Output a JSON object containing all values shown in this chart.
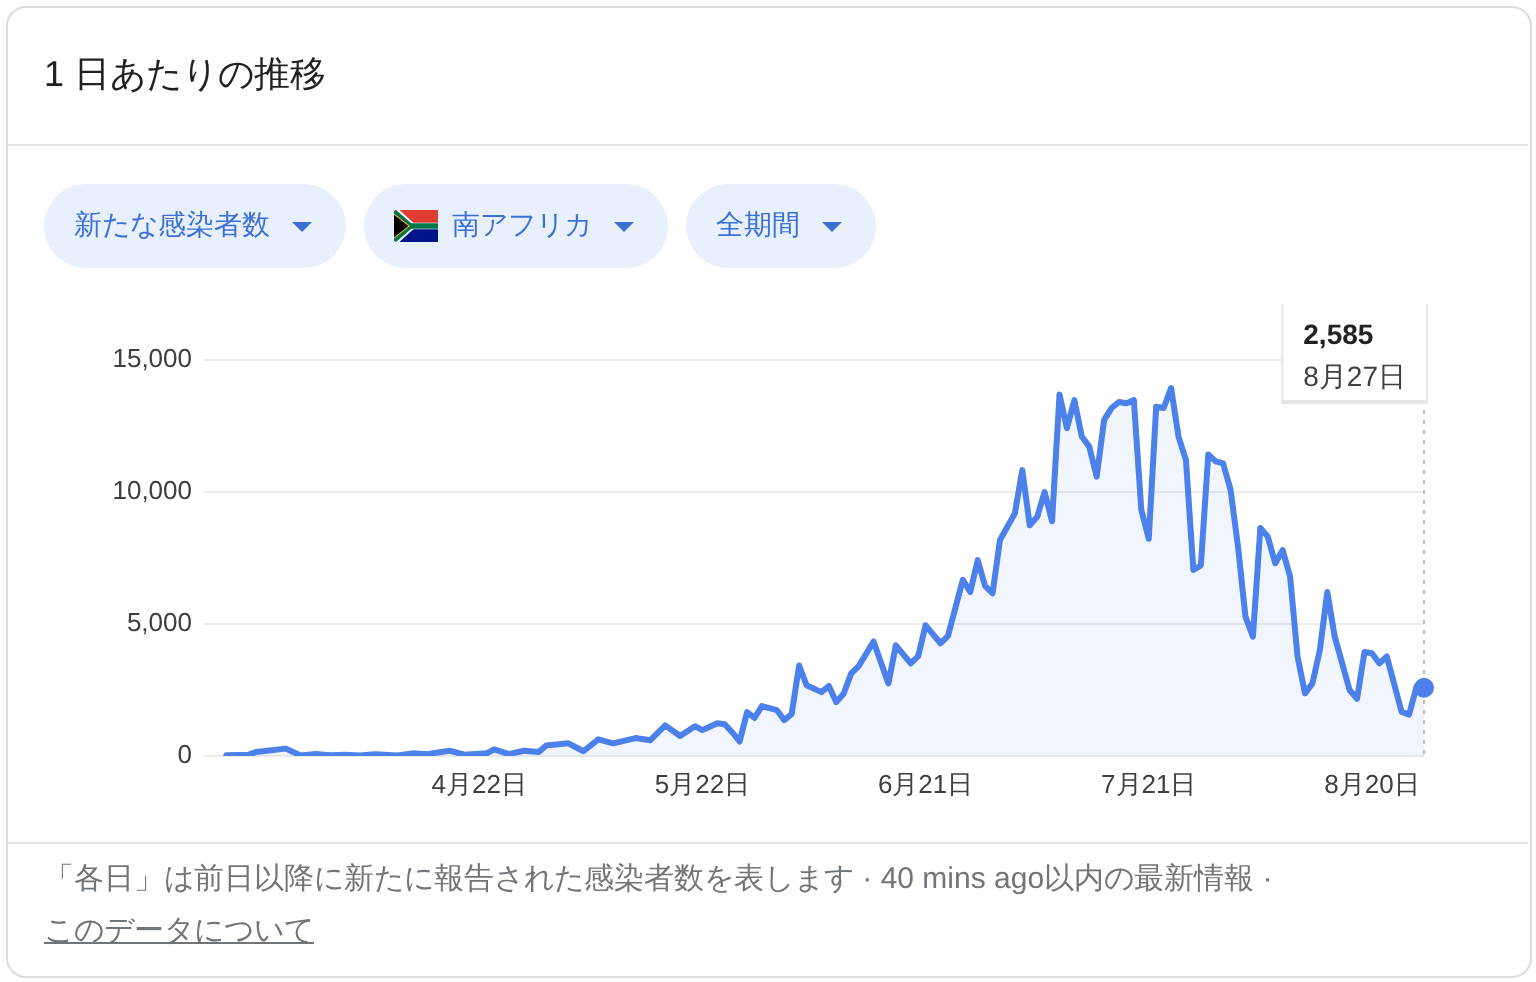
{
  "chart_data": {
    "type": "area",
    "title": "1 日あたりの推移",
    "color": "#4c80ea",
    "x": [
      "--03-19",
      "--03-22",
      "--03-23",
      "--03-27",
      "--03-29",
      "--03-31",
      "--04-02",
      "--04-04",
      "--04-06",
      "--04-08",
      "--04-11",
      "--04-13",
      "--04-15",
      "--04-18",
      "--04-20",
      "--04-23",
      "--04-24",
      "--04-26",
      "--04-28",
      "--04-30",
      "--05-01",
      "--05-04",
      "--05-06",
      "--05-08",
      "--05-10",
      "--05-13",
      "--05-15",
      "--05-17",
      "--05-19",
      "--05-21",
      "--05-22",
      "--05-24",
      "--05-25",
      "--05-26",
      "--05-27",
      "--05-28",
      "--05-29",
      "--05-30",
      "--06-01",
      "--06-02",
      "--06-03",
      "--06-04",
      "--06-05",
      "--06-07",
      "--06-08",
      "--06-09",
      "--06-10",
      "--06-11",
      "--06-12",
      "--06-14",
      "--06-16",
      "--06-17",
      "--06-19",
      "--06-20",
      "--06-21",
      "--06-23",
      "--06-24",
      "--06-26",
      "--06-27",
      "--06-28",
      "--06-29",
      "--06-30",
      "--07-01",
      "--07-03",
      "--07-04",
      "--07-05",
      "--07-06",
      "--07-07",
      "--07-08",
      "--07-09",
      "--07-10",
      "--07-11",
      "--07-12",
      "--07-13",
      "--07-14",
      "--07-15",
      "--07-16",
      "--07-17",
      "--07-18",
      "--07-19",
      "--07-20",
      "--07-21",
      "--07-22",
      "--07-23",
      "--07-24",
      "--07-25",
      "--07-26",
      "--07-27",
      "--07-28",
      "--07-29",
      "--07-30",
      "--07-31",
      "--08-01",
      "--08-02",
      "--08-03",
      "--08-04",
      "--08-05",
      "--08-06",
      "--08-07",
      "--08-08",
      "--08-09",
      "--08-10",
      "--08-11",
      "--08-12",
      "--08-13",
      "--08-14",
      "--08-15",
      "--08-16",
      "--08-17",
      "--08-18",
      "--08-19",
      "--08-20",
      "--08-21",
      "--08-22",
      "--08-24",
      "--08-25",
      "--08-26",
      "--08-27"
    ],
    "values": [
      30,
      50,
      150,
      280,
      20,
      80,
      30,
      50,
      20,
      70,
      20,
      100,
      70,
      200,
      50,
      100,
      250,
      70,
      200,
      150,
      400,
      480,
      180,
      630,
      480,
      680,
      600,
      1160,
      760,
      1130,
      980,
      1240,
      1200,
      900,
      550,
      1660,
      1440,
      1890,
      1740,
      1360,
      1590,
      3430,
      2680,
      2420,
      2650,
      2040,
      2370,
      3130,
      3400,
      4340,
      2750,
      4190,
      3510,
      3780,
      4950,
      4270,
      4540,
      6670,
      6210,
      7420,
      6440,
      6160,
      8180,
      9190,
      10830,
      8740,
      9060,
      10000,
      8890,
      13690,
      12420,
      13480,
      12100,
      11720,
      10580,
      12730,
      13180,
      13410,
      13360,
      13480,
      9320,
      8230,
      13230,
      13180,
      13940,
      12100,
      11210,
      7050,
      7220,
      11420,
      11160,
      11080,
      10080,
      7930,
      5280,
      4520,
      8640,
      8310,
      7300,
      7800,
      6800,
      3770,
      2370,
      2750,
      4020,
      6210,
      4520,
      3510,
      2500,
      2170,
      3940,
      3890,
      3510,
      3770,
      1670,
      1570,
      2630,
      2585
    ],
    "xlim": [
      "--03-16",
      "--08-27"
    ],
    "xticks": [
      {
        "value": "--04-22",
        "label": "4月22日"
      },
      {
        "value": "--05-22",
        "label": "5月22日"
      },
      {
        "value": "--06-21",
        "label": "6月21日"
      },
      {
        "value": "--07-21",
        "label": "7月21日"
      },
      {
        "value": "--08-20",
        "label": "8月20日"
      }
    ],
    "ylim": [
      0,
      15000
    ],
    "yticks": [
      0,
      {
        "value": 5000,
        "label": "5,000"
      },
      {
        "value": 10000,
        "label": "10,000"
      },
      {
        "value": 15000,
        "label": "15,000"
      }
    ],
    "grid": "y",
    "ref_lines": [
      {
        "axis": "x",
        "value": "--08-27",
        "color": "#bdbdbd",
        "line_style": "dotted"
      }
    ],
    "annotations": [
      "新たな感染者数",
      "南アフリカ",
      "全期間",
      "2,585",
      "8月27日",
      "「各日」は前日以降に新たに報告された感染者数を表します · 40 mins ago以内の最新情報 ·",
      "このデータについて"
    ]
  }
}
